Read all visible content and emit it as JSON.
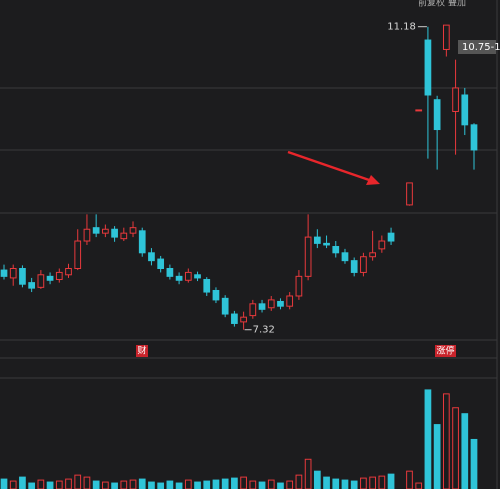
{
  "chart_data": {
    "type": "candlestick",
    "toolbar": [
      "前复权",
      "叠加"
    ],
    "annotations": {
      "price_tag": "10.75-1",
      "badge_left": "财",
      "badge_right": "涨停"
    },
    "up_color": "#e8393c",
    "down_color": "#2fc4d8",
    "ylim": [
      6.96,
      11.52
    ],
    "vlim": [
      0,
      110
    ],
    "open": [
      8.08,
      7.98,
      8.1,
      7.92,
      7.86,
      8.0,
      7.96,
      8.02,
      8.1,
      8.45,
      8.62,
      8.55,
      8.6,
      8.48,
      8.55,
      8.58,
      8.3,
      8.22,
      8.1,
      8.0,
      7.95,
      8.02,
      7.96,
      7.82,
      7.72,
      7.52,
      7.42,
      7.5,
      7.65,
      7.6,
      7.68,
      7.62,
      7.75,
      8.0,
      8.5,
      8.42,
      8.38,
      8.3,
      8.2,
      8.05,
      8.25,
      8.35,
      8.55,
      null,
      8.91,
      10.12,
      11.01,
      10.25,
      10.89,
      10.1,
      10.31,
      9.93
    ],
    "close": [
      8.0,
      8.1,
      7.9,
      7.85,
      8.02,
      7.95,
      8.05,
      8.1,
      8.45,
      8.6,
      8.55,
      8.6,
      8.5,
      8.55,
      8.62,
      8.3,
      8.2,
      8.1,
      8.0,
      7.95,
      8.05,
      7.98,
      7.8,
      7.7,
      7.52,
      7.4,
      7.48,
      7.65,
      7.58,
      7.7,
      7.62,
      7.75,
      8.0,
      8.5,
      8.42,
      8.4,
      8.3,
      8.2,
      8.05,
      8.25,
      8.3,
      8.45,
      8.45,
      null,
      9.19,
      10.12,
      10.31,
      9.87,
      11.2,
      10.4,
      9.93,
      9.61
    ],
    "high": [
      8.15,
      8.15,
      8.14,
      7.98,
      8.08,
      8.05,
      8.1,
      8.16,
      8.6,
      8.79,
      8.79,
      8.66,
      8.64,
      8.62,
      8.7,
      8.62,
      8.36,
      8.26,
      8.15,
      8.05,
      8.1,
      8.06,
      7.99,
      7.86,
      7.76,
      7.56,
      7.55,
      7.7,
      7.7,
      7.75,
      7.72,
      7.8,
      8.08,
      8.79,
      8.6,
      8.52,
      8.45,
      8.35,
      8.24,
      8.3,
      8.58,
      8.52,
      8.62,
      null,
      9.19,
      10.12,
      11.18,
      10.3,
      11.2,
      10.76,
      10.4,
      9.95
    ],
    "low": [
      7.96,
      7.88,
      7.86,
      7.8,
      7.84,
      7.9,
      7.92,
      7.98,
      8.08,
      8.4,
      8.5,
      8.5,
      8.44,
      8.45,
      8.5,
      8.25,
      8.14,
      8.05,
      7.96,
      7.9,
      7.92,
      7.94,
      7.75,
      7.66,
      7.48,
      7.36,
      7.32,
      7.46,
      7.54,
      7.56,
      7.58,
      7.58,
      7.7,
      7.95,
      8.36,
      8.36,
      8.24,
      8.16,
      8.0,
      8.0,
      8.2,
      8.3,
      8.4,
      null,
      8.9,
      10.12,
      9.5,
      9.36,
      10.8,
      9.55,
      9.8,
      9.36
    ],
    "volume": [
      10,
      8,
      12,
      6,
      9,
      7,
      8,
      10,
      14,
      12,
      8,
      7,
      6,
      8,
      9,
      10,
      7,
      6,
      8,
      6,
      9,
      7,
      8,
      9,
      10,
      11,
      12,
      8,
      7,
      9,
      6,
      8,
      14,
      30,
      18,
      12,
      10,
      9,
      8,
      11,
      12,
      13,
      15,
      null,
      18,
      6,
      100,
      65,
      96,
      82,
      76,
      50
    ]
  }
}
